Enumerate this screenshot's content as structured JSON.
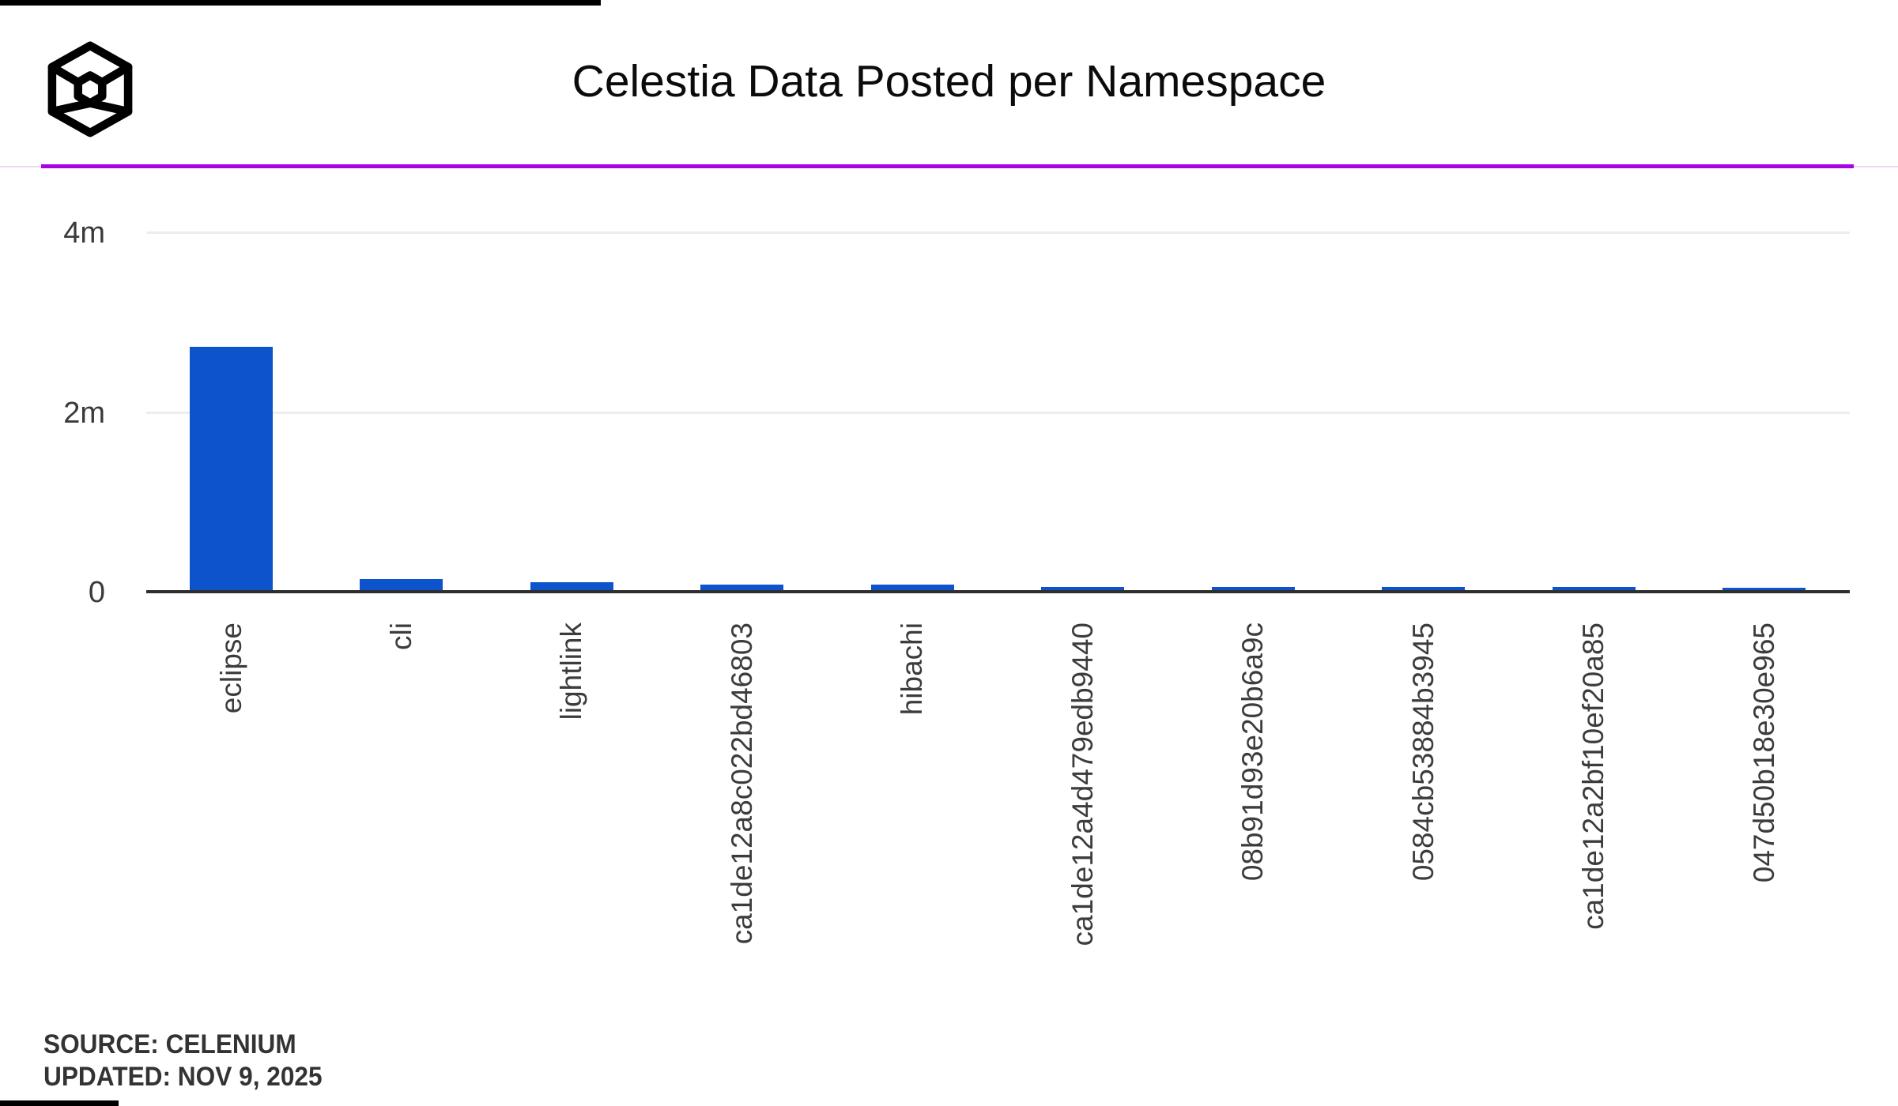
{
  "page": {
    "background": "#ffffff"
  },
  "header": {
    "logo_name": "celenium-cube-logo"
  },
  "divider": {
    "accent_color": "#a605e3",
    "track_color": "#eed6f8"
  },
  "chart_data": {
    "type": "bar",
    "title": "Celestia Data Posted per Namespace",
    "categories": [
      "eclipse",
      "cli",
      "lightlink",
      "ca1de12a8c022bd46803",
      "hibachi",
      "ca1de12a4d479edb9440",
      "08b91d93e20b6a9c",
      "0584cb53884b3945",
      "ca1de12a2bf10ef20a85",
      "047d50b18e30e965"
    ],
    "values": [
      2710000,
      123000,
      88000,
      60000,
      63000,
      35000,
      35000,
      35000,
      32000,
      30000
    ],
    "bar_color": "#0d53cb",
    "y_ticks": [
      {
        "label": "0",
        "value": 0
      },
      {
        "label": "2m",
        "value": 2000000
      },
      {
        "label": "4m",
        "value": 4000000
      }
    ],
    "ylim": [
      0,
      4400000
    ],
    "grid": "horizontal-light",
    "gridline_color": "#ededed",
    "axis_line_color": "#2f2f2f",
    "legend": "none",
    "x_label_rotation": -90
  },
  "footer": {
    "source": "SOURCE: CELENIUM",
    "updated": "UPDATED: NOV 9, 2025"
  }
}
